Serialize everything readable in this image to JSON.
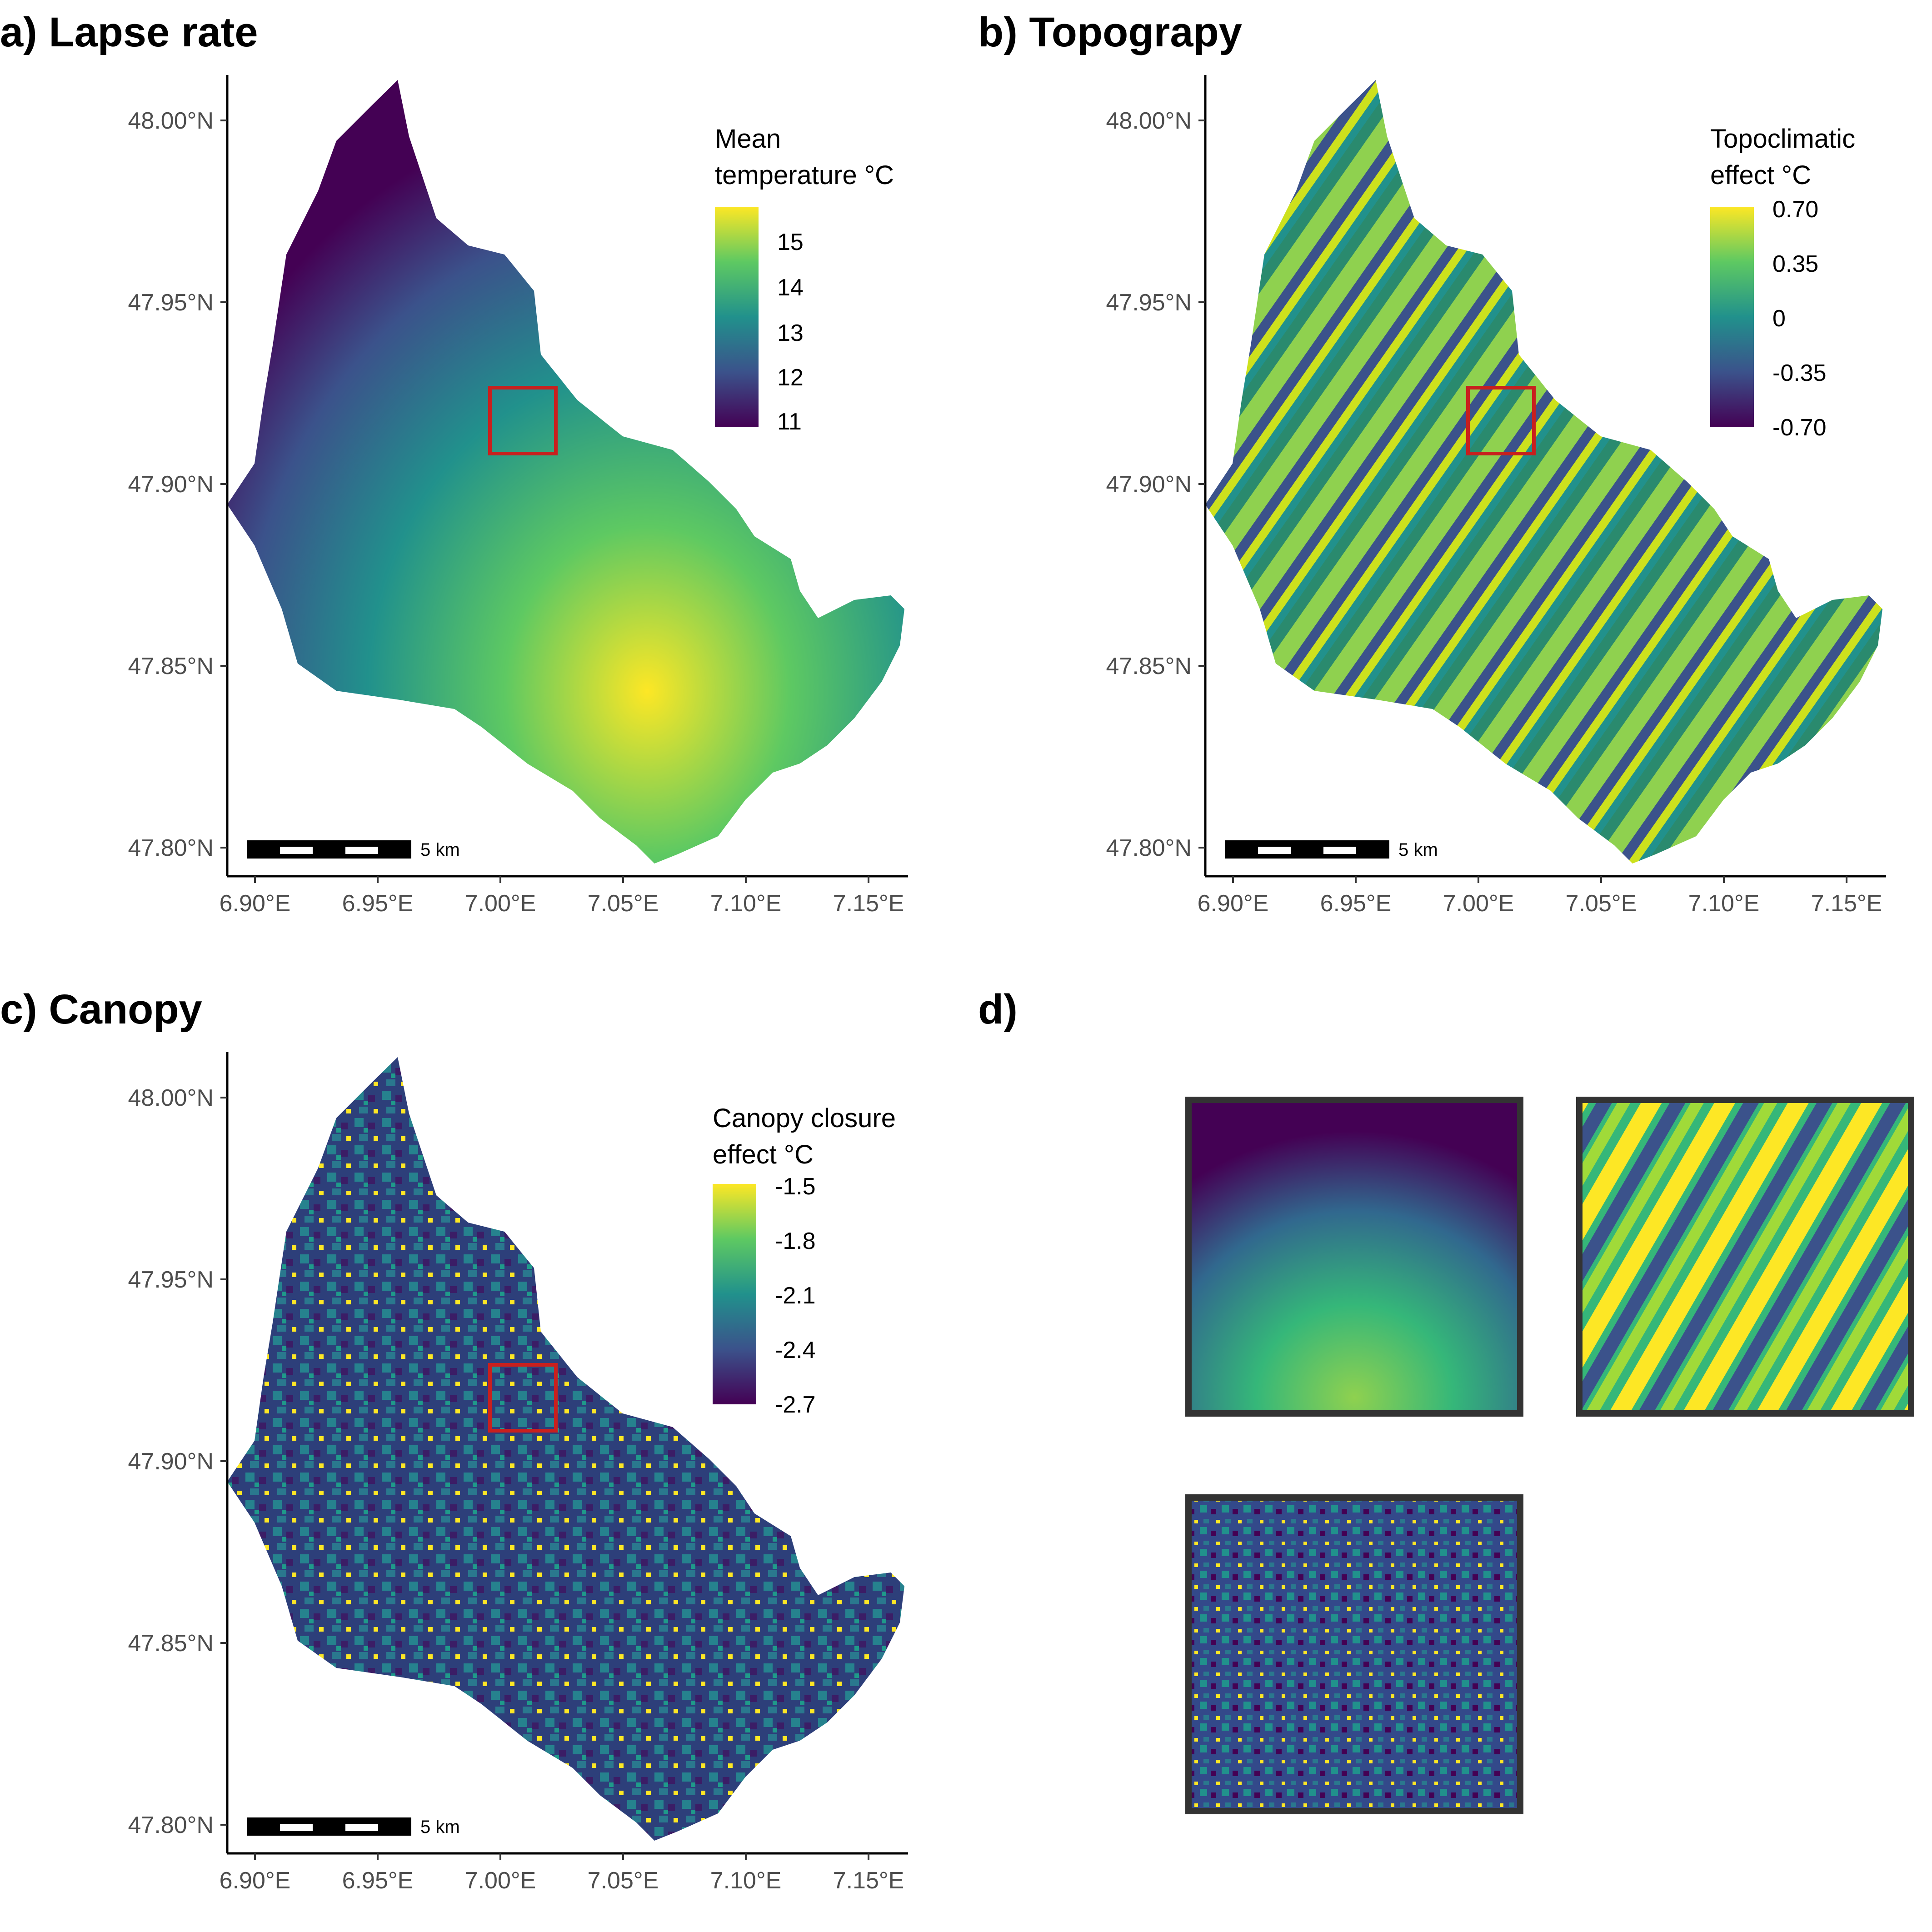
{
  "panels": {
    "a": {
      "title": "a) Lapse rate",
      "legend_title_lines": [
        "Mean",
        "temperature °C"
      ],
      "legend_labels": [
        "15",
        "14",
        "13",
        "12",
        "11"
      ],
      "scale_label": "5 km"
    },
    "b": {
      "title": "b) Topograpy",
      "legend_title_lines": [
        "Topoclimatic",
        "effect °C"
      ],
      "legend_labels": [
        "0.70",
        "0.35",
        "0",
        "-0.35",
        "-0.70"
      ],
      "scale_label": "5 km"
    },
    "c": {
      "title": "c) Canopy",
      "legend_title_lines": [
        "Canopy closure",
        "effect °C"
      ],
      "legend_labels": [
        "-1.5",
        "-1.8",
        "-2.1",
        "-2.4",
        "-2.7"
      ],
      "scale_label": "5 km"
    },
    "d": {
      "title": "d)"
    }
  },
  "axes": {
    "lat_ticks": [
      "48.00°N",
      "47.95°N",
      "47.90°N",
      "47.85°N",
      "47.80°N"
    ],
    "lon_ticks": [
      "6.90°E",
      "6.95°E",
      "7.00°E",
      "7.05°E",
      "7.10°E",
      "7.15°E"
    ]
  },
  "colors": {
    "viridis": [
      "#440154",
      "#3b528b",
      "#21918c",
      "#5ec962",
      "#fde725"
    ],
    "study_box": "#c8201e",
    "inset_frame": "#333333"
  }
}
